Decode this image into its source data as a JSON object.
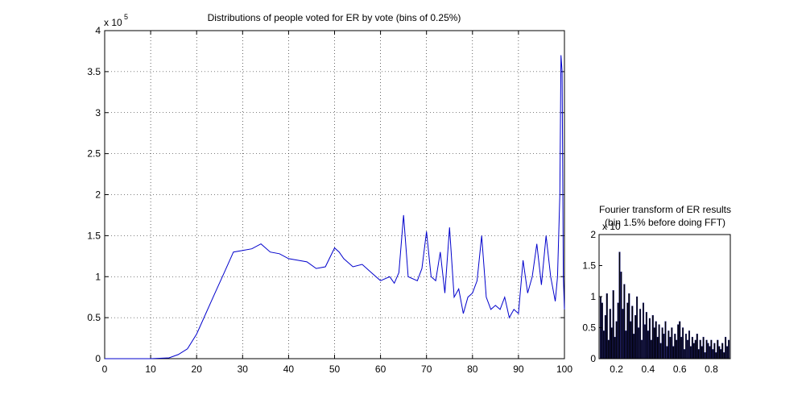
{
  "chart_data": [
    {
      "type": "line",
      "title": "Distributions of people voted for ER by vote (bins of 0.25%)",
      "xlabel": "",
      "ylabel": "",
      "y_exponent_label": "x 10",
      "y_exponent_power": "5",
      "xlim": [
        0,
        100
      ],
      "ylim": [
        0,
        4
      ],
      "x_ticks": [
        "0",
        "10",
        "20",
        "30",
        "40",
        "50",
        "60",
        "70",
        "80",
        "90",
        "100"
      ],
      "y_ticks": [
        "0",
        "0.5",
        "1",
        "1.5",
        "2",
        "2.5",
        "3",
        "3.5",
        "4"
      ],
      "grid": true,
      "line_color": "#0000cc",
      "series": [
        {
          "x": [
            0,
            10,
            14,
            16,
            18,
            20,
            22,
            24,
            26,
            28,
            30,
            32,
            34,
            36,
            38,
            40,
            42,
            44,
            46,
            48,
            50,
            51,
            52,
            54,
            56,
            58,
            60,
            62,
            63,
            64,
            65,
            66,
            68,
            69,
            70,
            71,
            72,
            73,
            74,
            75,
            76,
            77,
            78,
            79,
            80,
            81,
            82,
            83,
            84,
            85,
            86,
            87,
            88,
            89,
            90,
            91,
            92,
            93,
            94,
            95,
            96,
            97,
            98,
            98.5,
            99,
            99.25,
            99.5,
            99.75,
            100
          ],
          "y": [
            0,
            0,
            0.01,
            0.05,
            0.12,
            0.3,
            0.55,
            0.8,
            1.05,
            1.3,
            1.32,
            1.34,
            1.4,
            1.3,
            1.28,
            1.22,
            1.2,
            1.18,
            1.1,
            1.12,
            1.35,
            1.3,
            1.22,
            1.12,
            1.15,
            1.05,
            0.95,
            1.0,
            0.92,
            1.05,
            1.75,
            1.0,
            0.95,
            1.1,
            1.55,
            1.0,
            0.95,
            1.3,
            0.8,
            1.6,
            0.75,
            0.85,
            0.55,
            0.75,
            0.8,
            0.95,
            1.5,
            0.75,
            0.6,
            0.65,
            0.6,
            0.75,
            0.5,
            0.6,
            0.55,
            1.2,
            0.8,
            1.0,
            1.4,
            0.9,
            1.5,
            1.0,
            0.7,
            1.0,
            2.0,
            3.7,
            3.5,
            1.0,
            0.6
          ]
        }
      ]
    },
    {
      "type": "bar",
      "title": "Fourier transform of ER results",
      "subtitle": "(bin 1.5% before doing FFT)",
      "xlabel": "",
      "ylabel": "",
      "y_exponent_label": "x 10",
      "xlim": [
        0.09,
        0.92
      ],
      "ylim": [
        0,
        2
      ],
      "x_ticks": [
        "0.2",
        "0.4",
        "0.6",
        "0.8"
      ],
      "y_ticks": [
        "0",
        "0.5",
        "1",
        "1.5",
        "2"
      ],
      "grid": false,
      "bar_color": "#000000",
      "x": [
        0.1,
        0.11,
        0.12,
        0.13,
        0.14,
        0.15,
        0.16,
        0.17,
        0.18,
        0.19,
        0.2,
        0.21,
        0.22,
        0.23,
        0.24,
        0.25,
        0.26,
        0.27,
        0.28,
        0.29,
        0.3,
        0.31,
        0.32,
        0.33,
        0.34,
        0.35,
        0.36,
        0.37,
        0.38,
        0.39,
        0.4,
        0.41,
        0.42,
        0.43,
        0.44,
        0.45,
        0.46,
        0.47,
        0.48,
        0.49,
        0.5,
        0.51,
        0.52,
        0.53,
        0.54,
        0.55,
        0.56,
        0.57,
        0.58,
        0.59,
        0.6,
        0.61,
        0.62,
        0.63,
        0.64,
        0.65,
        0.66,
        0.67,
        0.68,
        0.69,
        0.7,
        0.71,
        0.72,
        0.73,
        0.74,
        0.75,
        0.76,
        0.77,
        0.78,
        0.79,
        0.8,
        0.81,
        0.82,
        0.83,
        0.84,
        0.85,
        0.86,
        0.87,
        0.88,
        0.89,
        0.9,
        0.91
      ],
      "values": [
        1.0,
        0.9,
        0.45,
        0.7,
        1.05,
        0.3,
        0.8,
        0.5,
        1.1,
        0.35,
        0.6,
        0.9,
        1.72,
        1.4,
        0.8,
        1.2,
        0.45,
        0.9,
        1.05,
        0.6,
        0.85,
        0.4,
        0.7,
        1.0,
        0.5,
        0.8,
        0.3,
        0.9,
        0.55,
        0.75,
        0.45,
        0.65,
        0.3,
        0.7,
        0.5,
        0.6,
        0.35,
        0.55,
        0.25,
        0.5,
        0.4,
        0.6,
        0.2,
        0.45,
        0.35,
        0.5,
        0.2,
        0.4,
        0.3,
        0.55,
        0.6,
        0.35,
        0.5,
        0.15,
        0.4,
        0.3,
        0.45,
        0.2,
        0.35,
        0.25,
        0.3,
        0.4,
        0.15,
        0.3,
        0.2,
        0.35,
        0.1,
        0.3,
        0.25,
        0.2,
        0.3,
        0.15,
        0.25,
        0.1,
        0.3,
        0.2,
        0.15,
        0.25,
        0.1,
        0.35,
        0.2,
        0.3
      ]
    }
  ]
}
